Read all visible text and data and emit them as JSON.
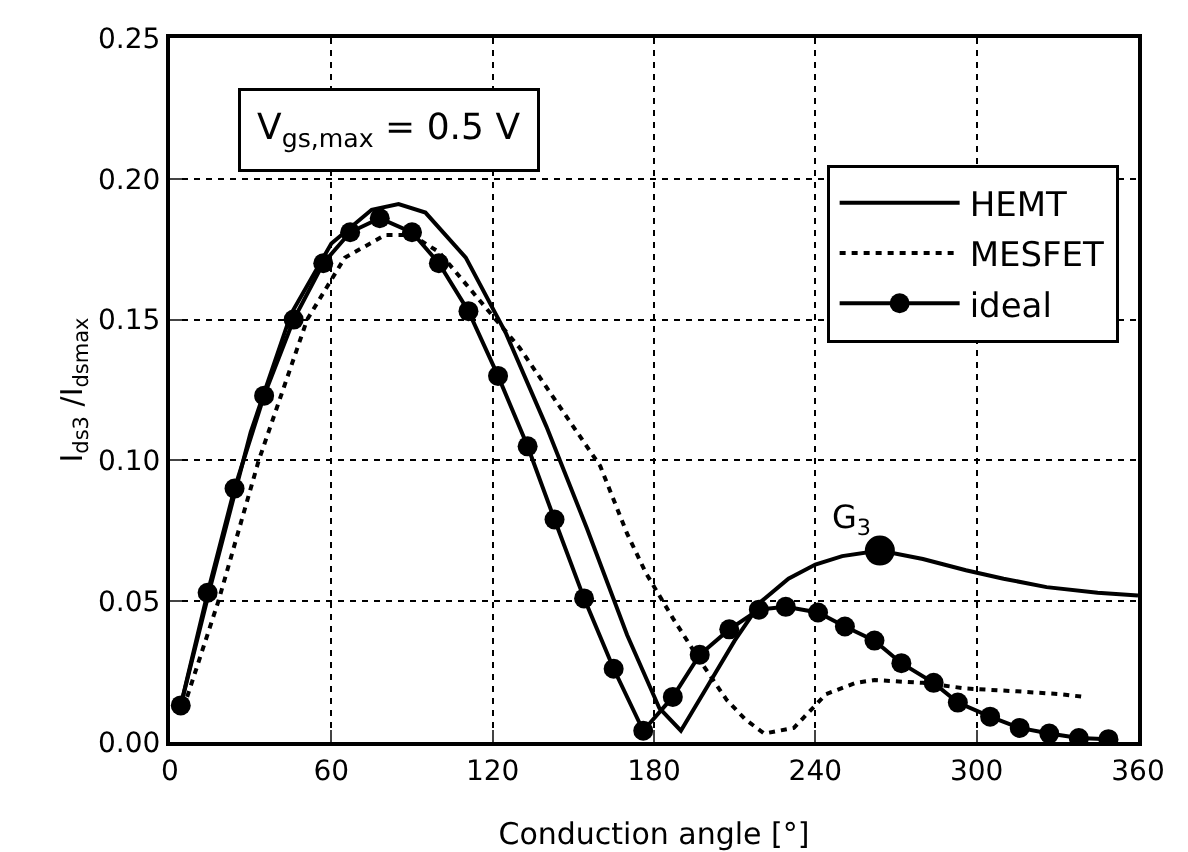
{
  "chart_data": {
    "type": "line",
    "xlabel": "Conduction angle [°]",
    "ylabel": "I$_{ds3}$ /I$_{dsmax}$",
    "xlim": [
      0,
      360
    ],
    "xticks": [
      0,
      60,
      120,
      180,
      240,
      300,
      360
    ],
    "ylim": [
      0,
      0.25
    ],
    "yticks": [
      {
        "value": 0,
        "label": "0.00"
      },
      0.05,
      {
        "value": 0.1,
        "label": "0.10"
      },
      0.15,
      {
        "value": 0.2,
        "label": "0.20"
      },
      0.25
    ],
    "grid": true,
    "legend": "top right",
    "annotations": [
      "V$_{gs,max}$ = 0.5 V",
      {
        "text": "G$_{3}$",
        "x": 264,
        "y": 0.068
      }
    ],
    "series": [
      {
        "name": "HEMT",
        "color": "#000000",
        "line_style": "solid",
        "marker": "none",
        "x": [
          4,
          15,
          30,
          45,
          60,
          75,
          85,
          95,
          110,
          125,
          140,
          155,
          170,
          182,
          190,
          200,
          210,
          220,
          230,
          240,
          250,
          264,
          280,
          296,
          310,
          326,
          345,
          360
        ],
        "values": [
          0.013,
          0.055,
          0.11,
          0.152,
          0.177,
          0.189,
          0.191,
          0.188,
          0.172,
          0.145,
          0.112,
          0.076,
          0.038,
          0.012,
          0.004,
          0.02,
          0.036,
          0.05,
          0.058,
          0.063,
          0.066,
          0.068,
          0.065,
          0.061,
          0.058,
          0.055,
          0.053,
          0.052
        ]
      },
      {
        "name": "MESFET",
        "color": "#000000",
        "line_style": "dotted",
        "marker": "none",
        "x": [
          5,
          18,
          33,
          51,
          65,
          80,
          90,
          100,
          115,
          130,
          145,
          160,
          170,
          177,
          187,
          197,
          207,
          214,
          221,
          232,
          244,
          255,
          262,
          280,
          296,
          315,
          331,
          340
        ],
        "values": [
          0.012,
          0.05,
          0.1,
          0.15,
          0.172,
          0.18,
          0.18,
          0.174,
          0.157,
          0.14,
          0.119,
          0.098,
          0.074,
          0.06,
          0.044,
          0.029,
          0.015,
          0.008,
          0.003,
          0.005,
          0.017,
          0.021,
          0.022,
          0.021,
          0.019,
          0.018,
          0.017,
          0.016
        ]
      },
      {
        "name": "ideal",
        "color": "#000000",
        "line_style": "solid",
        "marker": "circle",
        "x": [
          4,
          14,
          24,
          35,
          46,
          57,
          67,
          78,
          90,
          100,
          111,
          122,
          133,
          143,
          154,
          165,
          176,
          187,
          197,
          208,
          219,
          229,
          241,
          251,
          262,
          272,
          284,
          293,
          305,
          316,
          327,
          338,
          349
        ],
        "values": [
          0.013,
          0.053,
          0.09,
          0.123,
          0.15,
          0.17,
          0.181,
          0.186,
          0.181,
          0.17,
          0.153,
          0.13,
          0.105,
          0.079,
          0.051,
          0.026,
          0.004,
          0.016,
          0.031,
          0.04,
          0.047,
          0.048,
          0.046,
          0.041,
          0.036,
          0.028,
          0.021,
          0.014,
          0.009,
          0.005,
          0.003,
          0.0014,
          0.001
        ]
      }
    ]
  }
}
